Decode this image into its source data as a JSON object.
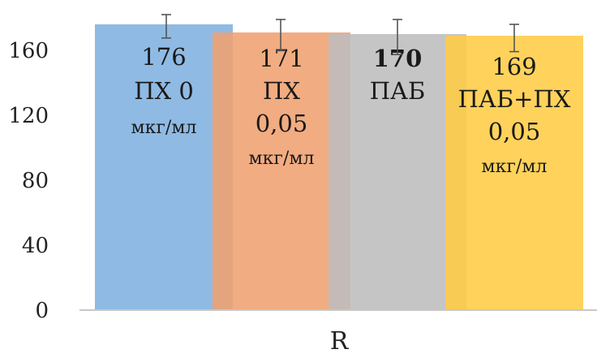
{
  "chart_data": {
    "type": "bar",
    "xlabel": "R",
    "ylabel": "",
    "ylim": [
      0,
      180
    ],
    "yticks": [
      0,
      40,
      80,
      120,
      160
    ],
    "grid": false,
    "legend": "none",
    "series": [
      {
        "value": 176,
        "error": 6,
        "label_lines": [
          "176",
          "ПХ 0",
          "мкг/мл"
        ],
        "bold_first": false,
        "color": "#7fb0e0"
      },
      {
        "value": 171,
        "error": 8,
        "label_lines": [
          "171",
          "ПХ",
          "0,05",
          "мкг/мл"
        ],
        "bold_first": false,
        "color": "#f0a070"
      },
      {
        "value": 170,
        "error": 9,
        "label_lines": [
          "170",
          "ПАБ"
        ],
        "bold_first": true,
        "color": "#bdbdbd"
      },
      {
        "value": 169,
        "error": 7,
        "label_lines": [
          "169",
          "ПАБ+ПХ",
          "0,05",
          "мкг/мл"
        ],
        "bold_first": false,
        "color": "#ffcc44"
      }
    ]
  }
}
